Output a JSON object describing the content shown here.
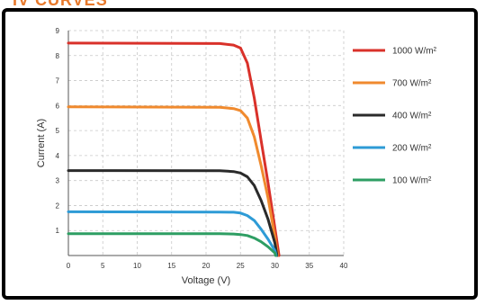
{
  "header": {
    "title": "IV CURVES"
  },
  "chart_data": {
    "type": "line",
    "title": "",
    "xlabel": "Voltage (V)",
    "ylabel": "Current (A)",
    "xlim": [
      0,
      40
    ],
    "ylim": [
      0,
      9
    ],
    "xticks": [
      0,
      5,
      10,
      15,
      20,
      25,
      30,
      35,
      40
    ],
    "yticks": [
      1,
      2,
      3,
      4,
      5,
      6,
      7,
      8,
      9
    ],
    "grid": true,
    "legend_position": "right",
    "series": [
      {
        "name": "1000 W/m²",
        "color": "#d9312a",
        "x": [
          0,
          22,
          24,
          25,
          26,
          27,
          28,
          29,
          30,
          30.6
        ],
        "y": [
          8.5,
          8.48,
          8.42,
          8.3,
          7.7,
          6.3,
          4.6,
          2.9,
          1.1,
          0
        ]
      },
      {
        "name": "700 W/m²",
        "color": "#f08a2e",
        "x": [
          0,
          22,
          24,
          25,
          26,
          27,
          28,
          29,
          30,
          30.4
        ],
        "y": [
          5.95,
          5.93,
          5.88,
          5.8,
          5.5,
          4.75,
          3.6,
          2.3,
          0.75,
          0
        ]
      },
      {
        "name": "400 W/m²",
        "color": "#2a2a2a",
        "x": [
          0,
          22,
          24,
          25,
          26,
          27,
          28,
          29,
          30,
          30.3
        ],
        "y": [
          3.4,
          3.39,
          3.36,
          3.3,
          3.15,
          2.8,
          2.2,
          1.45,
          0.5,
          0
        ]
      },
      {
        "name": "200 W/m²",
        "color": "#2e9bd6",
        "x": [
          0,
          22,
          24,
          25,
          26,
          27,
          28,
          29,
          30,
          30.2
        ],
        "y": [
          1.75,
          1.74,
          1.73,
          1.7,
          1.6,
          1.4,
          1.05,
          0.65,
          0.2,
          0
        ]
      },
      {
        "name": "100 W/m²",
        "color": "#2e9e63",
        "x": [
          0,
          22,
          24,
          25,
          26,
          27,
          28,
          29,
          30,
          30.1
        ],
        "y": [
          0.87,
          0.87,
          0.86,
          0.84,
          0.8,
          0.7,
          0.55,
          0.35,
          0.1,
          0
        ]
      }
    ]
  }
}
